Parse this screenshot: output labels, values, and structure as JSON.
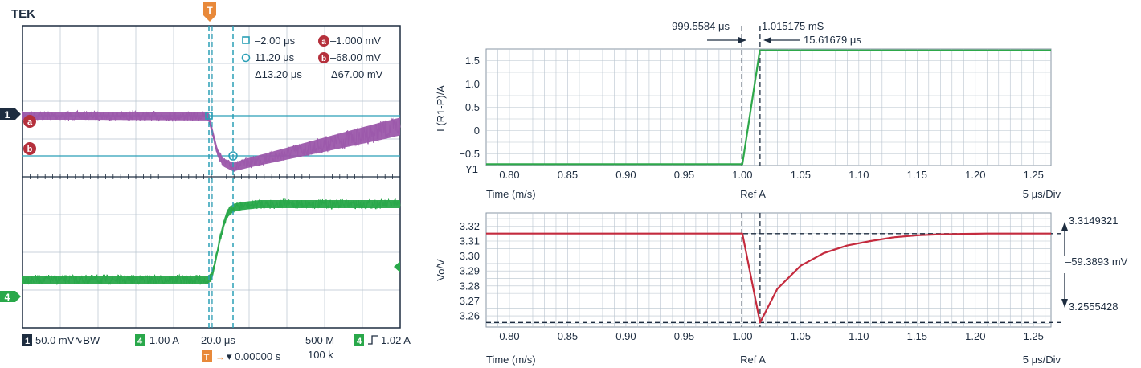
{
  "colors": {
    "scope_bg": "#ffffff",
    "scope_grid": "#b7c3cf",
    "scope_border": "#1e2d40",
    "ch1_trace": "#9c59ab",
    "ch4_trace": "#29a84a",
    "cursor_line": "#2a9fb6",
    "cursor_badge": "#b5303c",
    "trigger_orange": "#e8893a",
    "sim_grid": "#b8c3ce",
    "sim_current_trace": "#2ea84a",
    "sim_voltage_trace": "#c42b3e",
    "sim_marker": "#1e2d40"
  },
  "scope": {
    "brand": "TEK",
    "trigger_marker": "T",
    "ch1_marker": "1",
    "ch4_marker": "4",
    "ref_a_marker": "a",
    "ref_b_marker": "b",
    "cursor_readout": {
      "t1": "–2.00 μs",
      "t2": "11.20 μs",
      "dt": "Δ13.20 μs",
      "a_label": "a",
      "a_value": "–1.000 mV",
      "b_label": "b",
      "b_value": "–68.00 mV",
      "dv": "Δ67.00 mV"
    },
    "status": {
      "ch1_badge": "1",
      "ch1_scale": "50.0 mV∿BW",
      "ch4_badge": "4",
      "ch4_scale": "1.00 A",
      "timebase": "20.0 μs",
      "sample_rate": "500 M",
      "record_length": "100 k",
      "trig_badge": "4",
      "trig_level": "1.02 A",
      "trig_pos_badge": "T",
      "trig_pos": "▾ 0.00000 s"
    }
  },
  "sim": {
    "marker_t1_label": "999.5584 μs",
    "marker_t2_label": "1.015175 mS",
    "marker_dt_label": "15.61679 μs",
    "top_ylabel": "I (R1-P)/A",
    "top_y1_label": "Y1",
    "bottom_ylabel": "Vo/V",
    "xlabel_left": "Time (m/s)",
    "xlabel_center": "Ref A",
    "xlabel_right": "5 μs/Div",
    "right_v_high": "3.3149321",
    "right_v_delta": "–59.3893 mV",
    "right_v_low": "3.2555428"
  },
  "chart_data": [
    {
      "type": "line",
      "chart": "oscilloscope",
      "grid_divisions_x": 10,
      "grid_divisions_y": 8,
      "time_per_div_us": 20.0,
      "trigger_time_us": 0,
      "cursors_us": [
        -2.0,
        11.2
      ],
      "series": [
        {
          "name": "1",
          "unit": "mV",
          "scale_per_div": 50.0,
          "x": [
            -70,
            -2,
            0,
            3,
            6,
            11.2,
            20,
            40,
            60,
            80,
            100,
            110
          ],
          "y": [
            0,
            -1,
            -20,
            -50,
            -62,
            -68,
            -62,
            -50,
            -38,
            -26,
            -14,
            -8
          ]
        },
        {
          "name": "4",
          "unit": "A",
          "scale_per_div": 1.0,
          "x": [
            -70,
            -2,
            0,
            2,
            4,
            6,
            8,
            11.2,
            16,
            25,
            110
          ],
          "y": [
            0.0,
            0.0,
            0.1,
            0.55,
            1.05,
            1.45,
            1.75,
            1.9,
            1.95,
            2.0,
            2.0
          ]
        }
      ]
    },
    {
      "type": "line",
      "ylabel": "I (R1-P)/A",
      "xlabel": "Time (m/s)",
      "xlim": [
        0.78,
        1.265
      ],
      "ylim": [
        -0.75,
        1.75
      ],
      "xticks": [
        0.8,
        0.85,
        0.9,
        0.95,
        1.0,
        1.05,
        1.1,
        1.15,
        1.2,
        1.25
      ],
      "yticks": [
        1.5,
        1.0,
        0.5,
        0,
        -0.5
      ],
      "ytick_labels": [
        "1.5",
        "1.0",
        "0.5",
        "0",
        "−0.5"
      ],
      "markers_x": [
        0.9995584,
        1.015175
      ],
      "series": [
        {
          "x": [
            0.78,
            1.0,
            1.015,
            1.265
          ],
          "y": [
            -0.72,
            -0.72,
            1.72,
            1.72
          ]
        }
      ]
    },
    {
      "type": "line",
      "ylabel": "Vo/V",
      "xlabel": "Time (m/s)",
      "xlim": [
        0.78,
        1.265
      ],
      "ylim": [
        3.2525,
        3.3288
      ],
      "xticks": [
        0.8,
        0.85,
        0.9,
        0.95,
        1.0,
        1.05,
        1.1,
        1.15,
        1.2,
        1.25
      ],
      "yticks": [
        3.32,
        3.31,
        3.3,
        3.29,
        3.28,
        3.27,
        3.26
      ],
      "ytick_labels": [
        "3.32",
        "3.31",
        "3.30",
        "3.29",
        "3.28",
        "3.27",
        "3.26"
      ],
      "markers_x": [
        0.9995584,
        1.015175
      ],
      "markers_y": [
        3.3149321,
        3.2555428
      ],
      "series": [
        {
          "x": [
            0.78,
            1.0,
            1.0152,
            1.03,
            1.05,
            1.07,
            1.09,
            1.11,
            1.13,
            1.15,
            1.17,
            1.19,
            1.21,
            1.265
          ],
          "y": [
            3.315,
            3.315,
            3.2555,
            3.278,
            3.2935,
            3.302,
            3.307,
            3.31,
            3.3125,
            3.3138,
            3.3145,
            3.3148,
            3.315,
            3.315
          ]
        }
      ]
    }
  ]
}
